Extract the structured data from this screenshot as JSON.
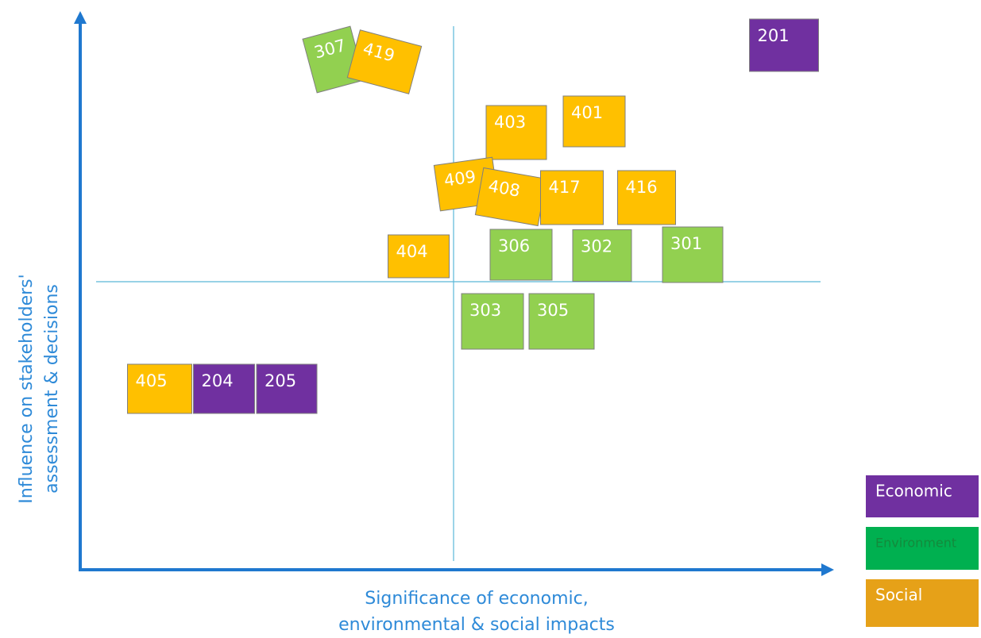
{
  "x_axis_label": [
    "Significance of economic,",
    "environmental & social impacts"
  ],
  "y_axis_label": [
    "Influence on stakeholders'",
    "assessment & decisions"
  ],
  "nodes": [
    {
      "label": "307",
      "color": "#92d050"
    },
    {
      "label": "419",
      "color": "#ffc000"
    },
    {
      "label": "201",
      "color": "#7030a0"
    },
    {
      "label": "403",
      "color": "#ffc000"
    },
    {
      "label": "401",
      "color": "#ffc000"
    },
    {
      "label": "409",
      "color": "#ffc000"
    },
    {
      "label": "408",
      "color": "#ffc000"
    },
    {
      "label": "417",
      "color": "#ffc000"
    },
    {
      "label": "416",
      "color": "#ffc000"
    },
    {
      "label": "404",
      "color": "#ffc000"
    },
    {
      "label": "306",
      "color": "#92d050"
    },
    {
      "label": "302",
      "color": "#92d050"
    },
    {
      "label": "301",
      "color": "#92d050"
    },
    {
      "label": "303",
      "color": "#92d050"
    },
    {
      "label": "305",
      "color": "#92d050"
    },
    {
      "label": "405",
      "color": "#ffc000"
    },
    {
      "label": "204",
      "color": "#7030a0"
    },
    {
      "label": "205",
      "color": "#7030a0"
    }
  ],
  "legend": [
    {
      "label": "Economic",
      "color": "#7030a0",
      "text_color": "#ffffff"
    },
    {
      "label": "Environment",
      "color": "#00b050",
      "text_color": "#138a3c"
    },
    {
      "label": "Social",
      "color": "#e6a118",
      "text_color": "#ffffff"
    }
  ]
}
